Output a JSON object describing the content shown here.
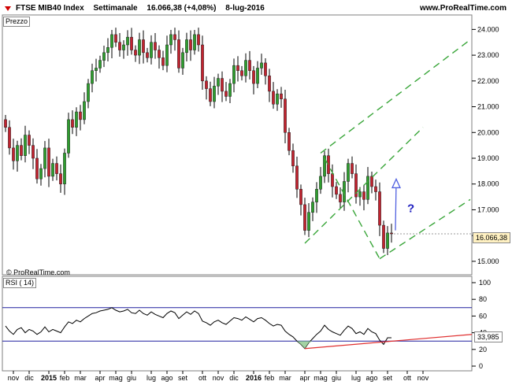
{
  "header": {
    "symbol": "FTSE MIB40 Index",
    "period": "Settimanale",
    "last": "16.066,38 (+4,08%)",
    "date": "8-lug-2016",
    "site": "www.ProRealTime.com"
  },
  "panels": {
    "price_label": "Prezzo",
    "rsi_label": "RSI ( 14)",
    "credit": "© ProRealTime.com",
    "price_current": "16.066,38",
    "rsi_current": "33,985"
  },
  "chart_data": [
    {
      "type": "candlestick",
      "title": "FTSE MIB40 Index",
      "y_ticks": [
        "24.000",
        "23.000",
        "22.000",
        "21.000",
        "20.000",
        "19.000",
        "18.000",
        "17.000",
        "16.000",
        "15.000"
      ],
      "ylim": [
        14600,
        24500
      ],
      "x_labels": [
        "nov",
        "dic",
        "2015",
        "feb",
        "mar",
        "apr",
        "mag",
        "giu",
        "lug",
        "ago",
        "set",
        "ott",
        "nov",
        "dic",
        "2016",
        "feb",
        "mar",
        "apr",
        "mag",
        "giu",
        "lug",
        "ago",
        "set",
        "ott",
        "nov"
      ],
      "x_ticks_week": [
        2,
        6,
        11,
        15,
        19,
        24,
        28,
        32,
        37,
        41,
        45,
        50,
        54,
        58,
        63,
        67,
        71,
        76,
        80,
        84,
        89,
        93,
        97,
        102,
        106
      ],
      "closes": [
        20200,
        19400,
        18900,
        19500,
        19100,
        19900,
        19500,
        19000,
        18200,
        18600,
        19400,
        18300,
        18800,
        18400,
        18000,
        19200,
        20500,
        20200,
        20800,
        20500,
        21200,
        21900,
        22400,
        22500,
        22800,
        23100,
        23300,
        23800,
        23500,
        23200,
        23400,
        23700,
        23200,
        23000,
        23600,
        23100,
        22900,
        23500,
        23200,
        22900,
        22600,
        23400,
        23800,
        23600,
        22500,
        23100,
        23600,
        23200,
        23800,
        23400,
        22000,
        21700,
        21200,
        21800,
        22100,
        21600,
        21400,
        21900,
        22600,
        22400,
        22200,
        22800,
        22400,
        21900,
        22500,
        22700,
        22200,
        21600,
        21100,
        21500,
        21300,
        20000,
        19300,
        18700,
        17800,
        17200,
        16200,
        16900,
        17300,
        17800,
        18300,
        19100,
        18400,
        17900,
        17600,
        17300,
        18100,
        18800,
        18400,
        17500,
        17700,
        17400,
        18300,
        17900,
        17700,
        16400,
        15500,
        16100,
        16066
      ],
      "markers": {
        "first_candle_week": 0,
        "weeks_per_bar": 1
      },
      "current_price": 16066.38,
      "annotations": [
        "?"
      ]
    },
    {
      "type": "line",
      "title": "RSI ( 14)",
      "y_ticks": [
        "100",
        "80",
        "60",
        "40",
        "20",
        "0"
      ],
      "ylim": [
        0,
        100
      ],
      "levels": [
        70,
        30
      ],
      "values": [
        48,
        42,
        38,
        44,
        46,
        40,
        44,
        42,
        38,
        41,
        47,
        41,
        44,
        42,
        40,
        47,
        53,
        51,
        55,
        53,
        57,
        60,
        63,
        64,
        66,
        67,
        68,
        70,
        67,
        65,
        66,
        68,
        64,
        63,
        67,
        63,
        61,
        65,
        62,
        60,
        58,
        63,
        66,
        64,
        57,
        61,
        65,
        62,
        66,
        63,
        54,
        52,
        49,
        53,
        55,
        52,
        50,
        54,
        58,
        57,
        55,
        59,
        56,
        53,
        57,
        58,
        55,
        51,
        48,
        50,
        49,
        42,
        38,
        35,
        30,
        26,
        21,
        28,
        33,
        38,
        42,
        49,
        44,
        41,
        39,
        37,
        43,
        48,
        45,
        39,
        41,
        38,
        45,
        41,
        39,
        31,
        26,
        33.985,
        33.985
      ],
      "current": 33.985
    }
  ]
}
